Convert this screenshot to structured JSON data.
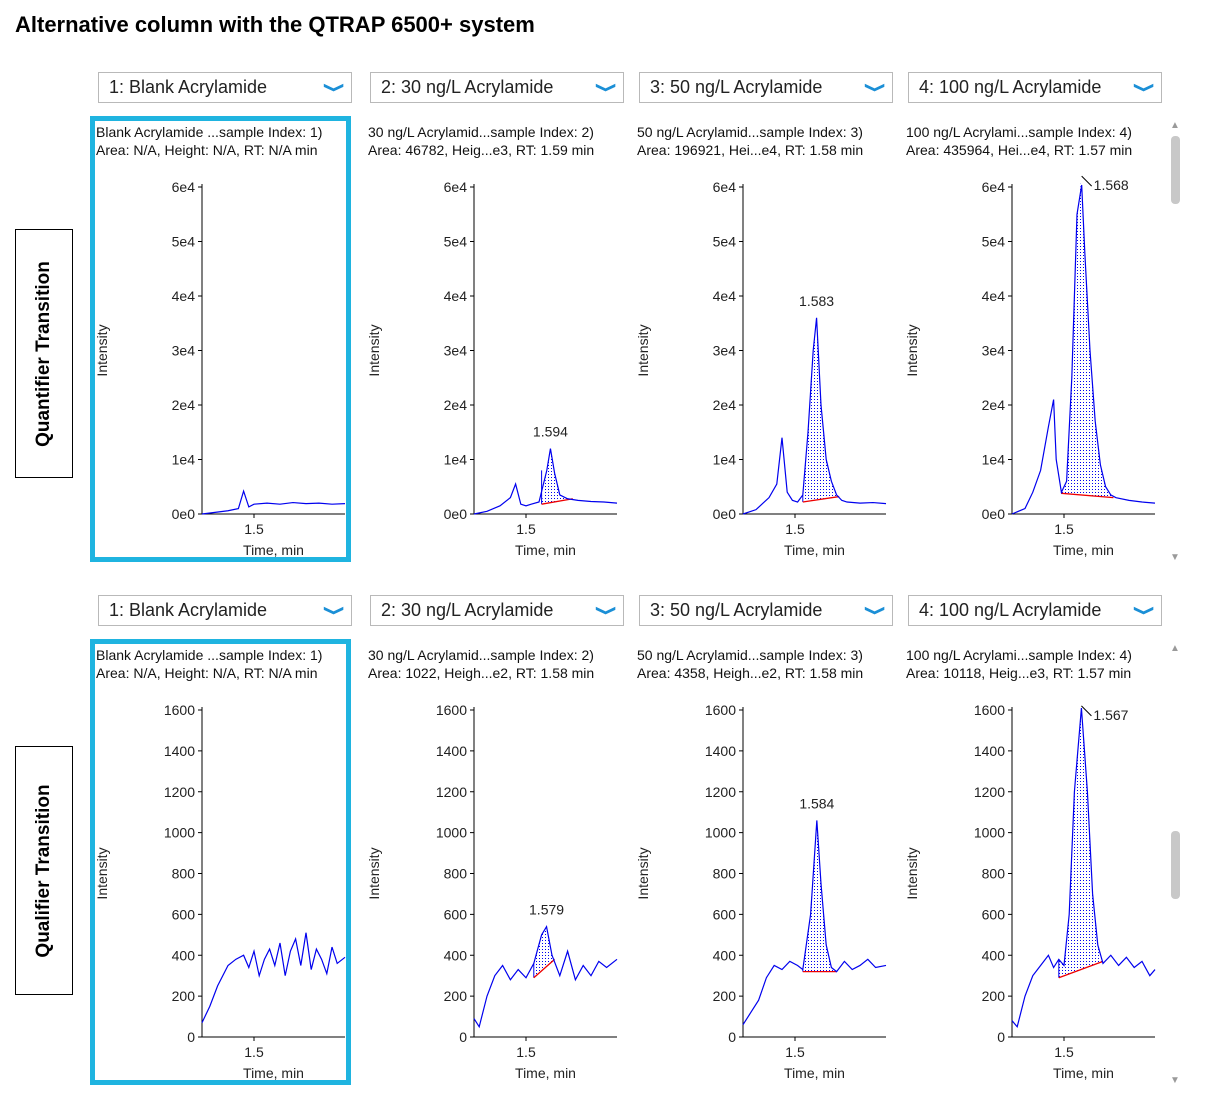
{
  "title": "Alternative column with the QTRAP 6500+ system",
  "row_labels": [
    "Quantifier Transition",
    "Qualifier Transition"
  ],
  "icons": {
    "dropdown": "chevron-down-icon",
    "scroll_up": "scroll-up-arrow-icon",
    "scroll_down": "scroll-down-arrow-icon"
  },
  "colors": {
    "trace": "#0000ee",
    "baseline": "#ee0000",
    "selection": "#1fb4e0",
    "dropdown_chevron": "#1b8fd6"
  },
  "rows": [
    {
      "label": "Quantifier Transition",
      "panels": [
        {
          "dropdown": "1: Blank Acrylamide",
          "info1": "Blank Acrylamide ...sample Index: 1)",
          "info2": "Area: N/A, Height: N/A, RT: N/A min",
          "selected": true
        },
        {
          "dropdown": "2: 30 ng/L Acrylamide",
          "info1": "30 ng/L Acrylamid...sample Index: 2)",
          "info2": "Area: 46782, Heig...e3, RT: 1.59 min",
          "selected": false
        },
        {
          "dropdown": "3: 50 ng/L Acrylamide",
          "info1": "50 ng/L Acrylamid...sample Index: 3)",
          "info2": "Area: 196921, Hei...e4, RT: 1.58 min",
          "selected": false
        },
        {
          "dropdown": "4: 100 ng/L Acrylamide",
          "info1": "100 ng/L Acrylami...sample Index: 4)",
          "info2": "Area: 435964, Hei...e4, RT: 1.57 min",
          "selected": false
        }
      ]
    },
    {
      "label": "Qualifier Transition",
      "panels": [
        {
          "dropdown": "1: Blank Acrylamide",
          "info1": "Blank Acrylamide ...sample Index: 1)",
          "info2": "Area: N/A, Height: N/A, RT: N/A min",
          "selected": true
        },
        {
          "dropdown": "2: 30 ng/L Acrylamide",
          "info1": "30 ng/L Acrylamid...sample Index: 2)",
          "info2": "Area: 1022, Heigh...e2, RT: 1.58 min",
          "selected": false
        },
        {
          "dropdown": "3: 50 ng/L Acrylamide",
          "info1": "50 ng/L Acrylamid...sample Index: 3)",
          "info2": "Area: 4358, Heigh...e2, RT: 1.58 min",
          "selected": false
        },
        {
          "dropdown": "4: 100 ng/L Acrylamide",
          "info1": "100 ng/L Acrylami...sample Index: 4)",
          "info2": "Area: 10118, Heig...e3, RT: 1.57 min",
          "selected": false
        }
      ]
    }
  ],
  "chart_data": [
    {
      "type": "line",
      "row": "Quantifier Transition",
      "sample": "Blank Acrylamide",
      "xlabel": "Time, min",
      "ylabel": "Intensity",
      "xlim": [
        1.3,
        1.85
      ],
      "ylim": [
        0,
        60000
      ],
      "yticks": [
        0,
        10000,
        20000,
        30000,
        40000,
        50000,
        60000
      ],
      "yticklabels": [
        "0e0",
        "1e4",
        "2e4",
        "3e4",
        "4e4",
        "5e4",
        "6e4"
      ],
      "xticks": [
        1.5
      ],
      "xticklabels": [
        "1.5"
      ],
      "x": [
        1.3,
        1.35,
        1.4,
        1.44,
        1.46,
        1.48,
        1.5,
        1.55,
        1.6,
        1.65,
        1.7,
        1.75,
        1.8,
        1.85
      ],
      "y": [
        0,
        300,
        600,
        1000,
        4200,
        1300,
        1800,
        2000,
        1800,
        2100,
        1900,
        2000,
        1800,
        1900
      ],
      "peak": null
    },
    {
      "type": "line",
      "row": "Quantifier Transition",
      "sample": "30 ng/L Acrylamide",
      "xlabel": "Time, min",
      "ylabel": "Intensity",
      "xlim": [
        1.3,
        1.85
      ],
      "ylim": [
        0,
        60000
      ],
      "yticks": [
        0,
        10000,
        20000,
        30000,
        40000,
        50000,
        60000
      ],
      "yticklabels": [
        "0e0",
        "1e4",
        "2e4",
        "3e4",
        "4e4",
        "5e4",
        "6e4"
      ],
      "xticks": [
        1.5
      ],
      "xticklabels": [
        "1.5"
      ],
      "x": [
        1.3,
        1.35,
        1.4,
        1.44,
        1.46,
        1.48,
        1.5,
        1.52,
        1.55,
        1.58,
        1.594,
        1.61,
        1.63,
        1.66,
        1.7,
        1.75,
        1.8,
        1.85
      ],
      "y": [
        0,
        500,
        1500,
        3000,
        5500,
        1800,
        1500,
        1800,
        2200,
        8000,
        12000,
        7500,
        3500,
        2800,
        2500,
        2300,
        2200,
        2000
      ],
      "peak": {
        "label": "1.594",
        "rt": 1.594,
        "apex": 12000,
        "start": 1.56,
        "end": 1.68,
        "baseline_start": 1800,
        "baseline_end": 2800
      }
    },
    {
      "type": "line",
      "row": "Quantifier Transition",
      "sample": "50 ng/L Acrylamide",
      "xlabel": "Time, min",
      "ylabel": "Intensity",
      "xlim": [
        1.3,
        1.85
      ],
      "ylim": [
        0,
        60000
      ],
      "yticks": [
        0,
        10000,
        20000,
        30000,
        40000,
        50000,
        60000
      ],
      "yticklabels": [
        "0e0",
        "1e4",
        "2e4",
        "3e4",
        "4e4",
        "5e4",
        "6e4"
      ],
      "xticks": [
        1.5
      ],
      "xticklabels": [
        "1.5"
      ],
      "x": [
        1.3,
        1.35,
        1.4,
        1.43,
        1.45,
        1.47,
        1.49,
        1.51,
        1.53,
        1.55,
        1.57,
        1.583,
        1.6,
        1.62,
        1.64,
        1.66,
        1.68,
        1.7,
        1.75,
        1.8,
        1.85
      ],
      "y": [
        0,
        800,
        3000,
        5500,
        14000,
        4000,
        2500,
        2200,
        3500,
        15000,
        30000,
        36000,
        20000,
        10000,
        6000,
        3500,
        2500,
        2200,
        2000,
        2100,
        1900
      ],
      "peak": {
        "label": "1.583",
        "rt": 1.583,
        "apex": 36000,
        "start": 1.53,
        "end": 1.67,
        "baseline_start": 2200,
        "baseline_end": 3200
      }
    },
    {
      "type": "line",
      "row": "Quantifier Transition",
      "sample": "100 ng/L Acrylamide",
      "xlabel": "Time, min",
      "ylabel": "Intensity",
      "xlim": [
        1.3,
        1.85
      ],
      "ylim": [
        0,
        60000
      ],
      "yticks": [
        0,
        10000,
        20000,
        30000,
        40000,
        50000,
        60000
      ],
      "yticklabels": [
        "0e0",
        "1e4",
        "2e4",
        "3e4",
        "4e4",
        "5e4",
        "6e4"
      ],
      "xticks": [
        1.5
      ],
      "xticklabels": [
        "1.5"
      ],
      "x": [
        1.3,
        1.35,
        1.38,
        1.41,
        1.44,
        1.46,
        1.47,
        1.49,
        1.51,
        1.53,
        1.55,
        1.568,
        1.58,
        1.6,
        1.62,
        1.64,
        1.66,
        1.68,
        1.7,
        1.75,
        1.8,
        1.85
      ],
      "y": [
        0,
        1000,
        4000,
        8000,
        16000,
        21000,
        10000,
        4000,
        6000,
        25000,
        55000,
        62000,
        48000,
        30000,
        17000,
        9000,
        5000,
        3500,
        3000,
        2500,
        2200,
        2000
      ],
      "peak": {
        "label": "1.568",
        "rt": 1.568,
        "apex": 62000,
        "start": 1.49,
        "end": 1.69,
        "baseline_start": 3800,
        "baseline_end": 3000
      }
    },
    {
      "type": "line",
      "row": "Qualifier Transition",
      "sample": "Blank Acrylamide",
      "xlabel": "Time, min",
      "ylabel": "Intensity",
      "xlim": [
        1.3,
        1.85
      ],
      "ylim": [
        0,
        1600
      ],
      "yticks": [
        0,
        200,
        400,
        600,
        800,
        1000,
        1200,
        1400,
        1600
      ],
      "yticklabels": [
        "0",
        "200",
        "400",
        "600",
        "800",
        "1000",
        "1200",
        "1400",
        "1600"
      ],
      "xticks": [
        1.5
      ],
      "xticklabels": [
        "1.5"
      ],
      "x": [
        1.3,
        1.33,
        1.36,
        1.4,
        1.43,
        1.46,
        1.48,
        1.5,
        1.52,
        1.54,
        1.56,
        1.58,
        1.6,
        1.62,
        1.64,
        1.66,
        1.68,
        1.7,
        1.72,
        1.74,
        1.76,
        1.78,
        1.8,
        1.82,
        1.85
      ],
      "y": [
        70,
        150,
        250,
        350,
        380,
        400,
        340,
        420,
        300,
        380,
        430,
        350,
        460,
        300,
        420,
        480,
        350,
        510,
        330,
        430,
        380,
        310,
        440,
        360,
        390
      ],
      "peak": null
    },
    {
      "type": "line",
      "row": "Qualifier Transition",
      "sample": "30 ng/L Acrylamide",
      "xlabel": "Time, min",
      "ylabel": "Intensity",
      "xlim": [
        1.3,
        1.85
      ],
      "ylim": [
        0,
        1600
      ],
      "yticks": [
        0,
        200,
        400,
        600,
        800,
        1000,
        1200,
        1400,
        1600
      ],
      "yticklabels": [
        "0",
        "200",
        "400",
        "600",
        "800",
        "1000",
        "1200",
        "1400",
        "1600"
      ],
      "xticks": [
        1.5
      ],
      "xticklabels": [
        "1.5"
      ],
      "x": [
        1.3,
        1.32,
        1.35,
        1.38,
        1.41,
        1.44,
        1.47,
        1.5,
        1.53,
        1.56,
        1.579,
        1.6,
        1.63,
        1.66,
        1.69,
        1.72,
        1.75,
        1.78,
        1.81,
        1.85
      ],
      "y": [
        90,
        50,
        200,
        300,
        350,
        280,
        330,
        290,
        360,
        500,
        540,
        400,
        300,
        420,
        280,
        350,
        300,
        370,
        340,
        380
      ],
      "peak": {
        "label": "1.579",
        "rt": 1.579,
        "apex": 540,
        "start": 1.53,
        "end": 1.61,
        "baseline_start": 290,
        "baseline_end": 380
      }
    },
    {
      "type": "line",
      "row": "Qualifier Transition",
      "sample": "50 ng/L Acrylamide",
      "xlabel": "Time, min",
      "ylabel": "Intensity",
      "xlim": [
        1.3,
        1.85
      ],
      "ylim": [
        0,
        1600
      ],
      "yticks": [
        0,
        200,
        400,
        600,
        800,
        1000,
        1200,
        1400,
        1600
      ],
      "yticklabels": [
        "0",
        "200",
        "400",
        "600",
        "800",
        "1000",
        "1200",
        "1400",
        "1600"
      ],
      "xticks": [
        1.5
      ],
      "xticklabels": [
        "1.5"
      ],
      "x": [
        1.3,
        1.33,
        1.36,
        1.39,
        1.42,
        1.45,
        1.48,
        1.51,
        1.53,
        1.56,
        1.584,
        1.6,
        1.62,
        1.64,
        1.66,
        1.69,
        1.72,
        1.75,
        1.78,
        1.81,
        1.85
      ],
      "y": [
        60,
        120,
        180,
        290,
        350,
        330,
        370,
        350,
        330,
        600,
        1060,
        750,
        450,
        340,
        320,
        370,
        330,
        350,
        380,
        340,
        350
      ],
      "peak": {
        "label": "1.584",
        "rt": 1.584,
        "apex": 1060,
        "start": 1.53,
        "end": 1.66,
        "baseline_start": 320,
        "baseline_end": 320
      }
    },
    {
      "type": "line",
      "row": "Qualifier Transition",
      "sample": "100 ng/L Acrylamide",
      "xlabel": "Time, min",
      "ylabel": "Intensity",
      "xlim": [
        1.3,
        1.85
      ],
      "ylim": [
        0,
        1600
      ],
      "yticks": [
        0,
        200,
        400,
        600,
        800,
        1000,
        1200,
        1400,
        1600
      ],
      "yticklabels": [
        "0",
        "200",
        "400",
        "600",
        "800",
        "1000",
        "1200",
        "1400",
        "1600"
      ],
      "xticks": [
        1.5
      ],
      "xticklabels": [
        "1.5"
      ],
      "x": [
        1.3,
        1.32,
        1.35,
        1.38,
        1.41,
        1.44,
        1.46,
        1.48,
        1.5,
        1.52,
        1.54,
        1.567,
        1.59,
        1.61,
        1.63,
        1.65,
        1.68,
        1.71,
        1.74,
        1.77,
        1.8,
        1.83,
        1.85
      ],
      "y": [
        80,
        50,
        200,
        300,
        350,
        400,
        340,
        380,
        350,
        600,
        1200,
        1620,
        1200,
        700,
        450,
        360,
        400,
        350,
        390,
        340,
        370,
        300,
        330
      ],
      "peak": {
        "label": "1.567",
        "rt": 1.567,
        "apex": 1620,
        "start": 1.48,
        "end": 1.65,
        "baseline_start": 290,
        "baseline_end": 370
      }
    }
  ]
}
